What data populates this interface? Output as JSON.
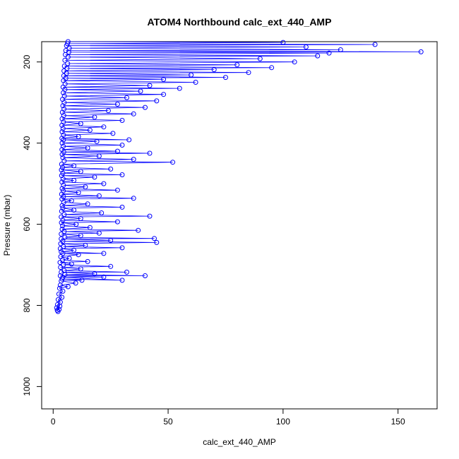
{
  "chart_data": {
    "type": "scatter",
    "title": "ATOM4 Northbound calc_ext_440_AMP",
    "xlabel": "calc_ext_440_AMP",
    "ylabel": "Pressure (mbar)",
    "xlim": [
      -5,
      167
    ],
    "ylim": [
      1055,
      150
    ],
    "y_reversed": true,
    "x_ticks": [
      0,
      50,
      100,
      150
    ],
    "y_ticks": [
      200,
      400,
      600,
      800,
      1000
    ],
    "x_tick_labels": [
      "0",
      "50",
      "100",
      "150"
    ],
    "y_tick_labels": [
      "200",
      "400",
      "600",
      "800",
      "1000"
    ],
    "series": [
      {
        "color": "#0000ff",
        "style": "line+points",
        "points": [
          [
            2.1,
            815
          ],
          [
            1.8,
            812
          ],
          [
            2.6,
            810
          ],
          [
            1.5,
            806
          ],
          [
            2.9,
            802
          ],
          [
            1.9,
            798
          ],
          [
            3.1,
            792
          ],
          [
            2.2,
            786
          ],
          [
            3.8,
            780
          ],
          [
            2.5,
            772
          ],
          [
            4.2,
            765
          ],
          [
            2.8,
            758
          ],
          [
            6.5,
            754
          ],
          [
            3.1,
            750
          ],
          [
            9.8,
            745
          ],
          [
            3.5,
            740
          ],
          [
            12.5,
            738
          ],
          [
            3.9,
            735
          ],
          [
            30,
            738
          ],
          [
            4.2,
            731
          ],
          [
            22,
            730
          ],
          [
            3.1,
            727
          ],
          [
            40,
            727
          ],
          [
            5.1,
            724
          ],
          [
            18,
            722
          ],
          [
            3.5,
            718
          ],
          [
            32,
            718
          ],
          [
            4.8,
            714
          ],
          [
            12,
            710
          ],
          [
            3.2,
            706
          ],
          [
            25,
            704
          ],
          [
            4.5,
            700
          ],
          [
            8,
            698
          ],
          [
            3.0,
            694
          ],
          [
            15,
            692
          ],
          [
            4.1,
            688
          ],
          [
            7,
            684
          ],
          [
            3.3,
            680
          ],
          [
            11,
            675
          ],
          [
            4.2,
            672
          ],
          [
            22,
            672
          ],
          [
            3.5,
            668
          ],
          [
            9,
            664
          ],
          [
            3.1,
            660
          ],
          [
            30,
            658
          ],
          [
            4.5,
            655
          ],
          [
            14,
            652
          ],
          [
            3.3,
            648
          ],
          [
            45,
            645
          ],
          [
            4.2,
            642
          ],
          [
            25,
            640
          ],
          [
            3.5,
            636
          ],
          [
            44,
            635
          ],
          [
            5.1,
            632
          ],
          [
            12,
            628
          ],
          [
            3.5,
            624
          ],
          [
            20,
            622
          ],
          [
            4.8,
            618
          ],
          [
            37,
            615
          ],
          [
            3.9,
            612
          ],
          [
            16,
            608
          ],
          [
            4.1,
            604
          ],
          [
            10,
            600
          ],
          [
            3.6,
            596
          ],
          [
            28,
            594
          ],
          [
            4.2,
            590
          ],
          [
            12,
            586
          ],
          [
            3.5,
            582
          ],
          [
            42,
            580
          ],
          [
            4.8,
            576
          ],
          [
            21,
            572
          ],
          [
            3.7,
            568
          ],
          [
            9,
            565
          ],
          [
            4.2,
            560
          ],
          [
            30,
            558
          ],
          [
            3.9,
            554
          ],
          [
            15,
            550
          ],
          [
            4.6,
            546
          ],
          [
            8,
            542
          ],
          [
            3.8,
            538
          ],
          [
            35,
            536
          ],
          [
            4.5,
            532
          ],
          [
            20,
            530
          ],
          [
            3.7,
            526
          ],
          [
            11,
            522
          ],
          [
            4.4,
            518
          ],
          [
            28,
            516
          ],
          [
            3.9,
            512
          ],
          [
            14,
            508
          ],
          [
            4.5,
            504
          ],
          [
            22,
            500
          ],
          [
            3.8,
            496
          ],
          [
            9,
            492
          ],
          [
            4.3,
            488
          ],
          [
            18,
            484
          ],
          [
            3.7,
            480
          ],
          [
            30,
            478
          ],
          [
            4.2,
            474
          ],
          [
            12,
            470
          ],
          [
            3.6,
            466
          ],
          [
            25,
            464
          ],
          [
            4.1,
            460
          ],
          [
            9,
            456
          ],
          [
            3.7,
            452
          ],
          [
            52,
            447
          ],
          [
            4.8,
            444
          ],
          [
            35,
            440
          ],
          [
            4.2,
            436
          ],
          [
            20,
            432
          ],
          [
            3.9,
            428
          ],
          [
            42,
            425
          ],
          [
            4.6,
            422
          ],
          [
            28,
            420
          ],
          [
            3.8,
            416
          ],
          [
            15,
            412
          ],
          [
            4.4,
            408
          ],
          [
            30,
            405
          ],
          [
            3.9,
            400
          ],
          [
            19,
            396
          ],
          [
            4.5,
            392
          ],
          [
            33,
            392
          ],
          [
            3.8,
            388
          ],
          [
            11,
            384
          ],
          [
            4.5,
            380
          ],
          [
            26,
            376
          ],
          [
            3.9,
            372
          ],
          [
            16,
            368
          ],
          [
            4.3,
            364
          ],
          [
            22,
            360
          ],
          [
            3.8,
            356
          ],
          [
            12,
            352
          ],
          [
            4.5,
            348
          ],
          [
            30,
            344
          ],
          [
            3.9,
            340
          ],
          [
            18,
            336
          ],
          [
            4.6,
            332
          ],
          [
            35,
            328
          ],
          [
            4.0,
            324
          ],
          [
            24,
            320
          ],
          [
            4.7,
            316
          ],
          [
            40,
            312
          ],
          [
            4.2,
            308
          ],
          [
            28,
            304
          ],
          [
            4.8,
            300
          ],
          [
            45,
            296
          ],
          [
            4.1,
            292
          ],
          [
            32,
            288
          ],
          [
            4.9,
            284
          ],
          [
            48,
            280
          ],
          [
            4.4,
            276
          ],
          [
            38,
            272
          ],
          [
            5.1,
            268
          ],
          [
            55,
            265
          ],
          [
            4.3,
            262
          ],
          [
            42,
            258
          ],
          [
            5.2,
            254
          ],
          [
            62,
            250
          ],
          [
            4.5,
            246
          ],
          [
            48,
            243
          ],
          [
            5.5,
            240
          ],
          [
            75,
            238
          ],
          [
            4.6,
            234
          ],
          [
            60,
            232
          ],
          [
            5.8,
            228
          ],
          [
            85,
            226
          ],
          [
            4.7,
            222
          ],
          [
            70,
            219
          ],
          [
            6.0,
            216
          ],
          [
            95,
            214
          ],
          [
            4.9,
            210
          ],
          [
            80,
            207
          ],
          [
            6.3,
            204
          ],
          [
            105,
            200
          ],
          [
            5.1,
            196
          ],
          [
            90,
            192
          ],
          [
            6.5,
            188
          ],
          [
            115,
            185
          ],
          [
            5.3,
            182
          ],
          [
            120,
            178
          ],
          [
            6.8,
            176
          ],
          [
            160,
            175
          ],
          [
            5.5,
            172
          ],
          [
            125,
            170
          ],
          [
            7.0,
            166
          ],
          [
            110,
            163
          ],
          [
            5.8,
            160
          ],
          [
            140,
            157
          ],
          [
            6.2,
            155
          ],
          [
            100,
            152
          ],
          [
            6.5,
            150
          ]
        ]
      }
    ]
  }
}
